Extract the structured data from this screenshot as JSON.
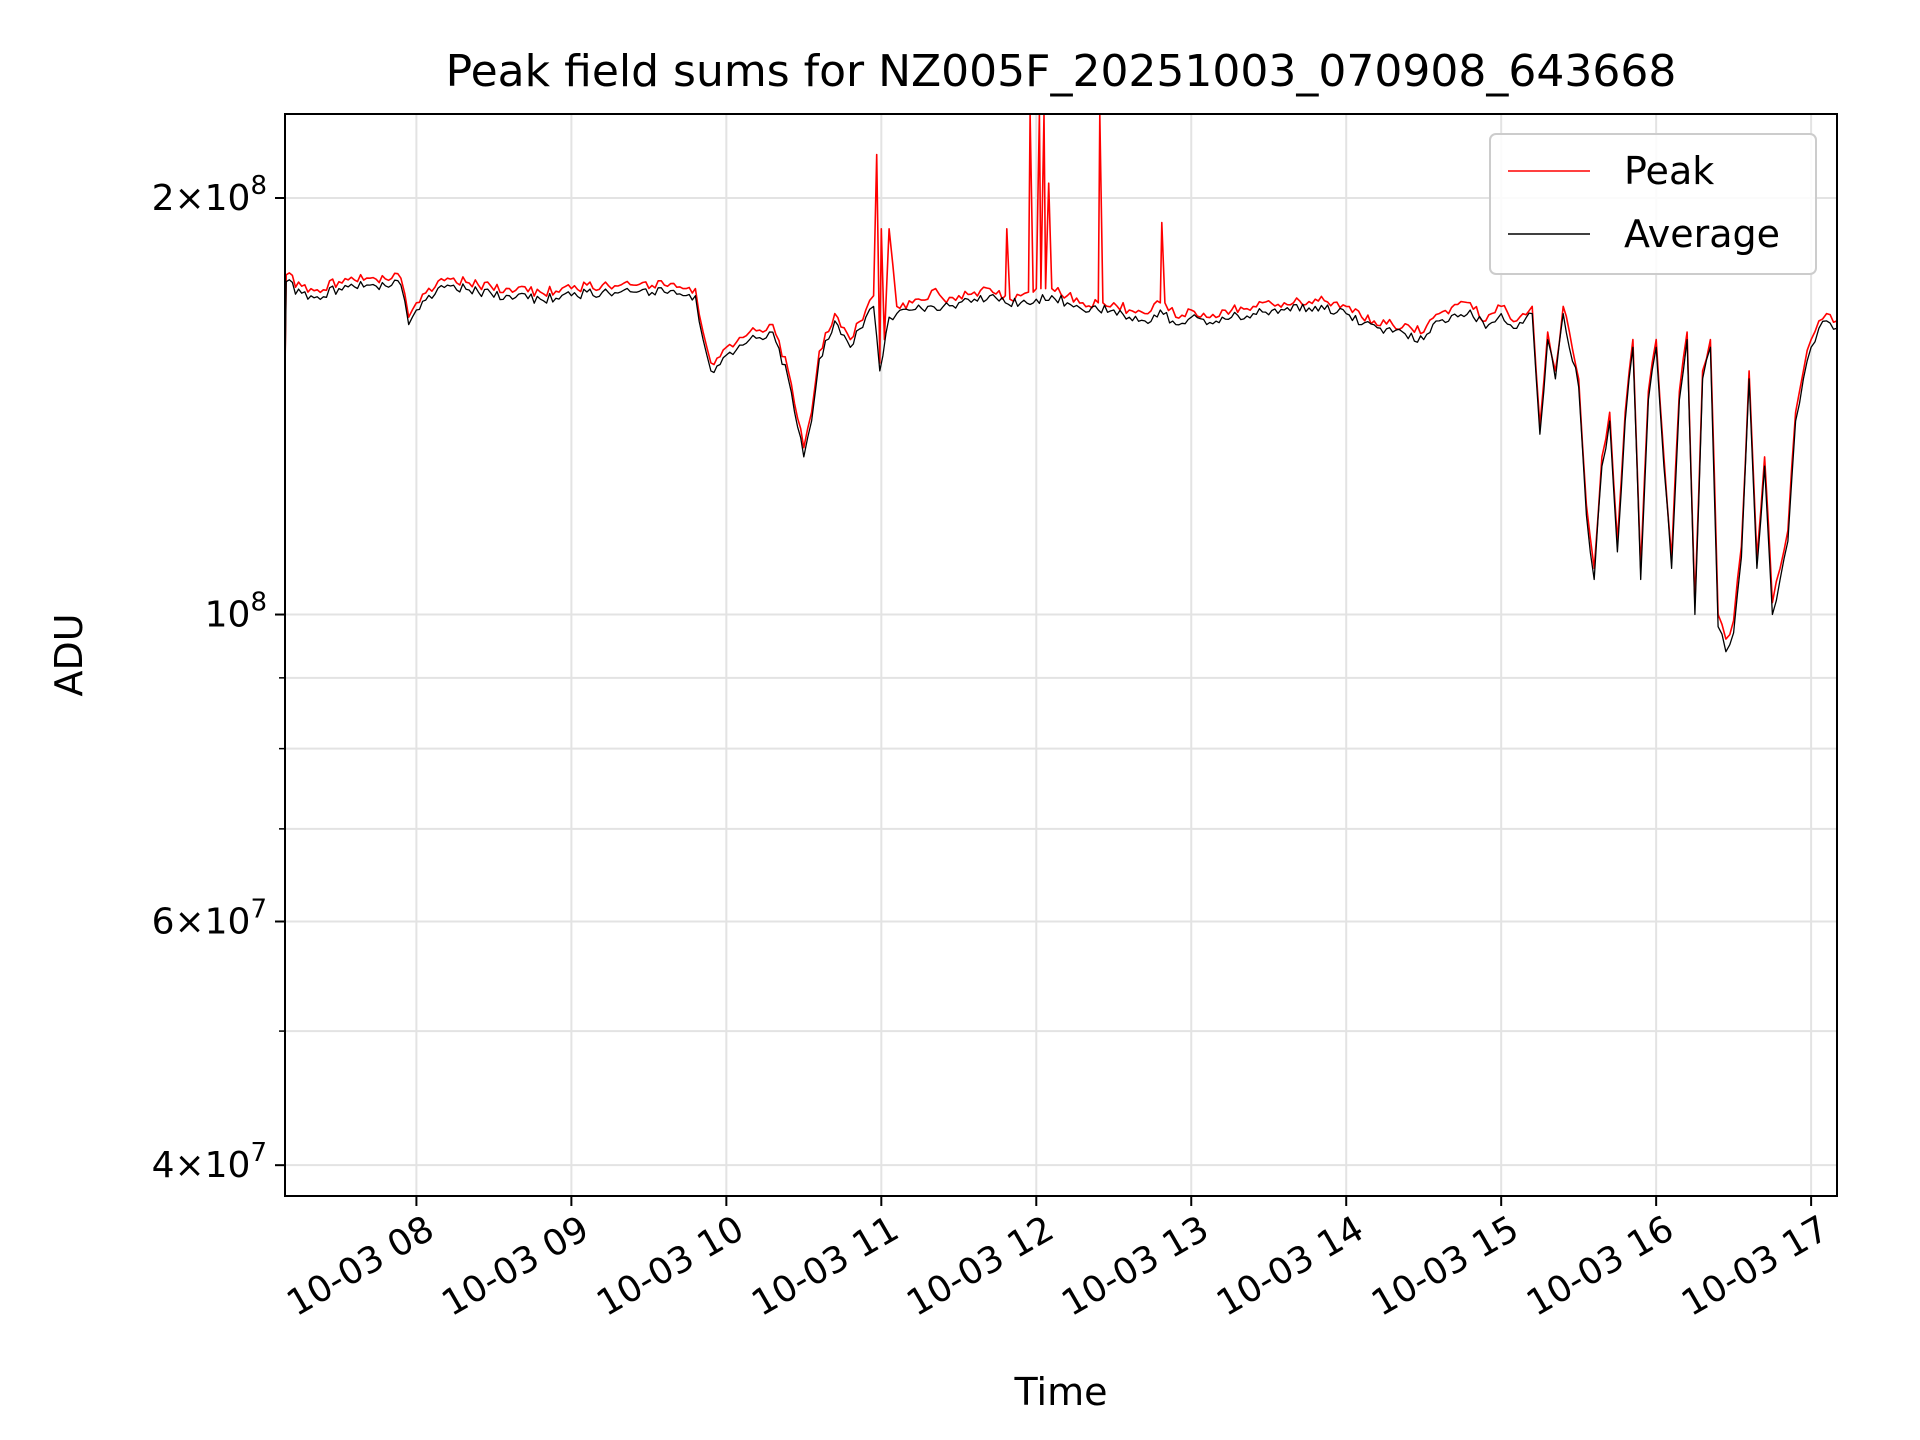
{
  "chart_data": {
    "type": "line",
    "title": "Peak field sums for NZ005F_20251003_070908_643668",
    "xlabel": "Time",
    "ylabel": "ADU",
    "yscale": "log",
    "grid": true,
    "legend_position": "top-right",
    "x_unit": "hours since 10-03 00:00",
    "xlim": [
      7.152,
      17.167
    ],
    "ylim": [
      38000000,
      230000000
    ],
    "x_ticks": [
      {
        "value": 8,
        "label": "10-03 08"
      },
      {
        "value": 9,
        "label": "10-03 09"
      },
      {
        "value": 10,
        "label": "10-03 10"
      },
      {
        "value": 11,
        "label": "10-03 11"
      },
      {
        "value": 12,
        "label": "10-03 12"
      },
      {
        "value": 13,
        "label": "10-03 13"
      },
      {
        "value": 14,
        "label": "10-03 14"
      },
      {
        "value": 15,
        "label": "10-03 15"
      },
      {
        "value": 16,
        "label": "10-03 16"
      },
      {
        "value": 17,
        "label": "10-03 17"
      }
    ],
    "y_ticks": [
      {
        "value": 40000000,
        "mantissa": "4",
        "exponent": "7"
      },
      {
        "value": 60000000,
        "mantissa": "6",
        "exponent": "7"
      },
      {
        "value": 100000000,
        "mantissa": "",
        "exponent": "8"
      },
      {
        "value": 200000000,
        "mantissa": "2",
        "exponent": "8"
      }
    ],
    "y_minor_ticks": [
      50000000,
      70000000,
      80000000,
      90000000
    ],
    "series": [
      {
        "name": "Peak",
        "color": "#ff0000",
        "x": [
          7.152,
          7.16,
          7.3,
          7.5,
          7.7,
          7.9,
          7.95,
          8.0,
          8.2,
          8.4,
          8.6,
          8.8,
          9.0,
          9.2,
          9.4,
          9.6,
          9.8,
          9.85,
          9.9,
          10.0,
          10.15,
          10.3,
          10.4,
          10.5,
          10.55,
          10.6,
          10.7,
          10.8,
          10.9,
          10.95,
          10.97,
          10.99,
          11.0,
          11.02,
          11.05,
          11.1,
          11.2,
          11.3,
          11.35,
          11.4,
          11.5,
          11.6,
          11.7,
          11.8,
          11.81,
          11.83,
          11.9,
          11.95,
          11.96,
          11.98,
          12.0,
          12.02,
          12.03,
          12.05,
          12.06,
          12.08,
          12.1,
          12.2,
          12.3,
          12.4,
          12.41,
          12.43,
          12.5,
          12.6,
          12.7,
          12.8,
          12.81,
          12.83,
          12.9,
          13.0,
          13.1,
          13.2,
          13.4,
          13.6,
          13.8,
          14.0,
          14.1,
          14.3,
          14.5,
          14.6,
          14.8,
          14.9,
          15.0,
          15.1,
          15.2,
          15.25,
          15.3,
          15.35,
          15.4,
          15.5,
          15.55,
          15.6,
          15.65,
          15.7,
          15.75,
          15.8,
          15.85,
          15.9,
          15.95,
          16.0,
          16.05,
          16.1,
          16.15,
          16.2,
          16.25,
          16.3,
          16.35,
          16.4,
          16.45,
          16.5,
          16.55,
          16.6,
          16.65,
          16.7,
          16.75,
          16.8,
          16.85,
          16.9,
          16.95,
          17.0,
          17.05,
          17.1,
          17.167
        ],
        "values": [
          150000000,
          176000000,
          171000000,
          174000000,
          175000000,
          175000000,
          164000000,
          168000000,
          175000000,
          173000000,
          172000000,
          171000000,
          172000000,
          173000000,
          173000000,
          173000000,
          172000000,
          160000000,
          152000000,
          156000000,
          160000000,
          162000000,
          150000000,
          132000000,
          140000000,
          155000000,
          165000000,
          158000000,
          166000000,
          170000000,
          215000000,
          152000000,
          190000000,
          158000000,
          190000000,
          167000000,
          168000000,
          169000000,
          172000000,
          169000000,
          170000000,
          171000000,
          172000000,
          170000000,
          190000000,
          169000000,
          170000000,
          171000000,
          260000000,
          171000000,
          172000000,
          260000000,
          172000000,
          260000000,
          172000000,
          205000000,
          172000000,
          170000000,
          168000000,
          168000000,
          260000000,
          168000000,
          168000000,
          166000000,
          165000000,
          168000000,
          192000000,
          168000000,
          164000000,
          166000000,
          164000000,
          166000000,
          167000000,
          168000000,
          169000000,
          167000000,
          164000000,
          162000000,
          160000000,
          165000000,
          168000000,
          163000000,
          167000000,
          163000000,
          167000000,
          137000000,
          160000000,
          150000000,
          167000000,
          148000000,
          120000000,
          108000000,
          130000000,
          140000000,
          113000000,
          140000000,
          158000000,
          108000000,
          145000000,
          158000000,
          130000000,
          110000000,
          145000000,
          160000000,
          102000000,
          150000000,
          158000000,
          100000000,
          96000000,
          99000000,
          112000000,
          150000000,
          110000000,
          130000000,
          102000000,
          108000000,
          115000000,
          140000000,
          150000000,
          158000000,
          163000000,
          165000000,
          163000000
        ]
      },
      {
        "name": "Average",
        "color": "#000000",
        "x": [
          7.152,
          7.16,
          7.3,
          7.5,
          7.7,
          7.9,
          7.95,
          8.0,
          8.2,
          8.4,
          8.6,
          8.8,
          9.0,
          9.2,
          9.4,
          9.6,
          9.8,
          9.85,
          9.9,
          10.0,
          10.15,
          10.3,
          10.4,
          10.5,
          10.55,
          10.6,
          10.7,
          10.8,
          10.9,
          10.95,
          10.99,
          11.05,
          11.1,
          11.2,
          11.3,
          11.4,
          11.5,
          11.6,
          11.7,
          11.8,
          11.9,
          12.0,
          12.1,
          12.2,
          12.3,
          12.4,
          12.5,
          12.6,
          12.7,
          12.8,
          12.9,
          13.0,
          13.1,
          13.2,
          13.4,
          13.6,
          13.8,
          14.0,
          14.1,
          14.3,
          14.5,
          14.6,
          14.8,
          14.9,
          15.0,
          15.1,
          15.2,
          15.25,
          15.3,
          15.35,
          15.4,
          15.5,
          15.55,
          15.6,
          15.65,
          15.7,
          15.75,
          15.8,
          15.85,
          15.9,
          15.95,
          16.0,
          16.05,
          16.1,
          16.15,
          16.2,
          16.25,
          16.3,
          16.35,
          16.4,
          16.45,
          16.5,
          16.55,
          16.6,
          16.65,
          16.7,
          16.75,
          16.8,
          16.85,
          16.9,
          16.95,
          17.0,
          17.05,
          17.1,
          17.167
        ],
        "values": [
          148000000,
          174000000,
          169000000,
          172000000,
          173000000,
          173000000,
          162000000,
          166000000,
          173000000,
          171000000,
          170000000,
          169000000,
          170000000,
          171000000,
          171000000,
          171000000,
          170000000,
          158000000,
          150000000,
          154000000,
          158000000,
          160000000,
          148000000,
          130000000,
          138000000,
          153000000,
          163000000,
          156000000,
          164000000,
          167000000,
          150000000,
          164000000,
          165000000,
          166000000,
          167000000,
          167000000,
          168000000,
          169000000,
          170000000,
          168000000,
          168000000,
          169000000,
          170000000,
          168000000,
          166000000,
          166000000,
          166000000,
          164000000,
          163000000,
          166000000,
          162000000,
          164000000,
          162000000,
          164000000,
          165000000,
          166000000,
          167000000,
          165000000,
          162000000,
          160000000,
          158000000,
          163000000,
          166000000,
          161000000,
          165000000,
          161000000,
          165000000,
          135000000,
          158000000,
          148000000,
          165000000,
          146000000,
          118000000,
          106000000,
          128000000,
          138000000,
          111000000,
          138000000,
          156000000,
          106000000,
          143000000,
          156000000,
          128000000,
          108000000,
          143000000,
          158000000,
          100000000,
          148000000,
          156000000,
          98000000,
          94000000,
          97000000,
          110000000,
          148000000,
          108000000,
          128000000,
          100000000,
          106000000,
          113000000,
          138000000,
          148000000,
          156000000,
          161000000,
          163000000,
          161000000
        ]
      }
    ]
  }
}
